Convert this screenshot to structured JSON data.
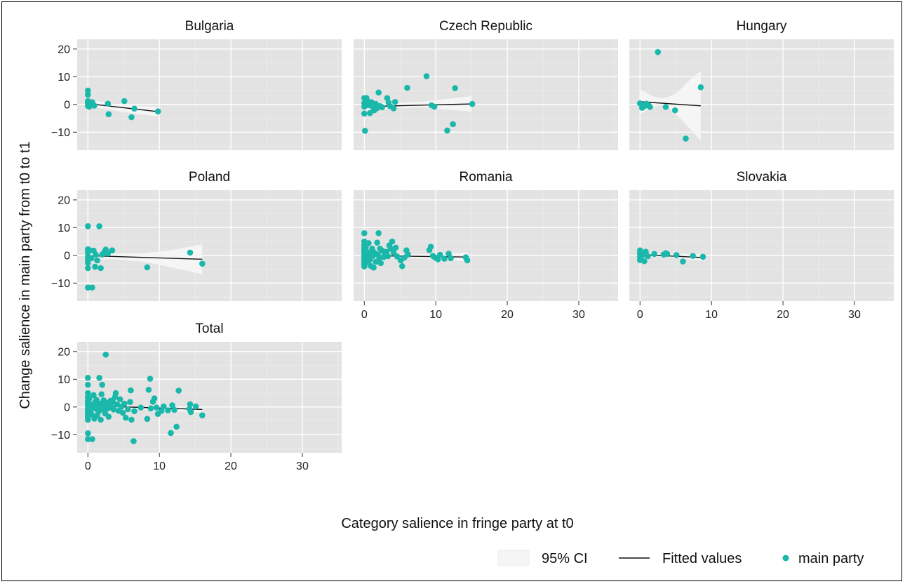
{
  "chart_data": {
    "type": "scatter",
    "xlabel": "Category salience in fringe party at t0",
    "ylabel": "Change salience in main party from t0 to t1",
    "xlim": [
      -1.5,
      35.5
    ],
    "ylim": [
      -16.5,
      23.5
    ],
    "x_ticks": [
      "0",
      "10",
      "20",
      "30"
    ],
    "y_ticks": [
      "20",
      "10",
      "0",
      "−10"
    ],
    "grid": true,
    "colors": {
      "points": "#1ab8aa",
      "line": "#111111",
      "ci": "#f5f5f5",
      "panel": "#e3e3e3"
    },
    "legend": {
      "placement": "bottom-right",
      "entries": [
        {
          "label": "95% CI",
          "kind": "ci"
        },
        {
          "label": "Fitted values",
          "kind": "line"
        },
        {
          "label": "main party",
          "kind": "point"
        }
      ]
    },
    "panels": [
      {
        "title": "Bulgaria",
        "fit": {
          "x": [
            0,
            9.8
          ],
          "y": [
            0.3,
            -2.6
          ]
        },
        "ci": {
          "x": [
            0,
            2,
            5,
            9.8
          ],
          "upper": [
            1.6,
            0.9,
            -0.2,
            -1.0
          ],
          "lower": [
            -1.0,
            -1.4,
            -2.7,
            -4.4
          ]
        },
        "points": [
          [
            0,
            5
          ],
          [
            0,
            3.5
          ],
          [
            0,
            1.2
          ],
          [
            0,
            0.5
          ],
          [
            0,
            -0.5
          ],
          [
            0.2,
            -0.8
          ],
          [
            0.4,
            0.2
          ],
          [
            0.6,
            0.8
          ],
          [
            0.9,
            -0.4
          ],
          [
            2.8,
            0.3
          ],
          [
            2.9,
            -3.5
          ],
          [
            5.1,
            1.2
          ],
          [
            6.1,
            -4.6
          ],
          [
            6.5,
            -1.5
          ],
          [
            9.8,
            -2.5
          ]
        ]
      },
      {
        "title": "Czech Republic",
        "fit": {
          "x": [
            0,
            15
          ],
          "y": [
            -0.8,
            0.2
          ]
        },
        "ci": {
          "x": [
            0,
            4,
            8,
            15
          ],
          "upper": [
            0.6,
            0.5,
            1.0,
            3.0
          ],
          "lower": [
            -2.1,
            -1.4,
            -1.0,
            -2.6
          ]
        },
        "points": [
          [
            0,
            2.3
          ],
          [
            0,
            0.5
          ],
          [
            0,
            -0.8
          ],
          [
            0,
            -3.3
          ],
          [
            0.1,
            -9.5
          ],
          [
            0.3,
            2.3
          ],
          [
            0.5,
            1.0
          ],
          [
            0.6,
            -0.3
          ],
          [
            0.8,
            -3.1
          ],
          [
            1.0,
            0.8
          ],
          [
            1.2,
            -1.0
          ],
          [
            1.4,
            -2.1
          ],
          [
            1.6,
            0.2
          ],
          [
            1.8,
            -1.3
          ],
          [
            2.0,
            4.3
          ],
          [
            2.2,
            -0.6
          ],
          [
            2.5,
            -1.0
          ],
          [
            3.2,
            2.3
          ],
          [
            3.4,
            0.6
          ],
          [
            3.6,
            -0.6
          ],
          [
            4.1,
            -1.4
          ],
          [
            4.3,
            0.9
          ],
          [
            6.0,
            6.0
          ],
          [
            8.7,
            10.2
          ],
          [
            9.4,
            -0.3
          ],
          [
            9.8,
            -0.8
          ],
          [
            11.6,
            -9.4
          ],
          [
            12.4,
            -7.1
          ],
          [
            12.7,
            5.9
          ],
          [
            15.1,
            0.2
          ]
        ]
      },
      {
        "title": "Hungary",
        "fit": {
          "x": [
            0,
            8.5
          ],
          "y": [
            1.0,
            -0.5
          ]
        },
        "ci": {
          "x": [
            0,
            1,
            2,
            3,
            4,
            5,
            6,
            7,
            8.5
          ],
          "upper": [
            5.5,
            4.0,
            2.8,
            2.3,
            2.7,
            4.0,
            6.3,
            9.0,
            12.0
          ],
          "lower": [
            -3.5,
            -2.0,
            -0.8,
            -0.3,
            -1.2,
            -3.5,
            -6.0,
            -8.8,
            -13.0
          ]
        },
        "points": [
          [
            0,
            0.4
          ],
          [
            0.3,
            -1.2
          ],
          [
            0.6,
            -0.6
          ],
          [
            0.9,
            0.3
          ],
          [
            1.2,
            -0.4
          ],
          [
            1.4,
            -0.9
          ],
          [
            2.5,
            18.9
          ],
          [
            3.6,
            -0.9
          ],
          [
            4.9,
            -2.1
          ],
          [
            6.4,
            -12.3
          ],
          [
            8.5,
            6.2
          ]
        ]
      },
      {
        "title": "Poland",
        "fit": {
          "x": [
            0,
            16
          ],
          "y": [
            -0.1,
            -1.4
          ]
        },
        "ci": {
          "x": [
            0,
            4,
            8,
            12,
            16
          ],
          "upper": [
            1.3,
            0.6,
            0.8,
            2.0,
            4.0
          ],
          "lower": [
            -1.5,
            -1.4,
            -2.4,
            -4.5,
            -6.8
          ]
        },
        "points": [
          [
            0,
            10.5
          ],
          [
            0,
            2.2
          ],
          [
            0,
            1.0
          ],
          [
            0,
            -0.5
          ],
          [
            0,
            -1.5
          ],
          [
            0,
            -2.7
          ],
          [
            0,
            -4.6
          ],
          [
            0,
            -11.6
          ],
          [
            0.3,
            1.8
          ],
          [
            0.5,
            -1.0
          ],
          [
            0.6,
            -11.6
          ],
          [
            0.8,
            1.7
          ],
          [
            1.0,
            -4.1
          ],
          [
            1.1,
            0.3
          ],
          [
            1.3,
            -1.8
          ],
          [
            1.6,
            10.5
          ],
          [
            1.8,
            -4.6
          ],
          [
            2.0,
            0.3
          ],
          [
            2.3,
            1.2
          ],
          [
            2.5,
            2.1
          ],
          [
            2.8,
            0.7
          ],
          [
            3.4,
            1.8
          ],
          [
            8.3,
            -4.3
          ],
          [
            14.3,
            1.0
          ],
          [
            16.0,
            -3.0
          ]
        ]
      },
      {
        "title": "Romania",
        "fit": {
          "x": [
            0,
            14.5
          ],
          "y": [
            -0.1,
            -0.6
          ]
        },
        "ci": {
          "x": [
            0,
            5,
            10,
            14.5
          ],
          "upper": [
            0.6,
            0.4,
            0.5,
            1.0
          ],
          "lower": [
            -0.8,
            -0.8,
            -1.3,
            -2.2
          ]
        },
        "points": [
          [
            0,
            8.0
          ],
          [
            0,
            5.0
          ],
          [
            0,
            3.8
          ],
          [
            0,
            2.8
          ],
          [
            0,
            2.0
          ],
          [
            0,
            1.2
          ],
          [
            0,
            0.5
          ],
          [
            0,
            -0.2
          ],
          [
            0,
            -0.9
          ],
          [
            0,
            -1.6
          ],
          [
            0,
            -2.3
          ],
          [
            0,
            -3.1
          ],
          [
            0,
            -4.0
          ],
          [
            0.2,
            3.0
          ],
          [
            0.3,
            1.5
          ],
          [
            0.4,
            -0.5
          ],
          [
            0.5,
            -2.5
          ],
          [
            0.6,
            4.4
          ],
          [
            0.7,
            0.8
          ],
          [
            0.8,
            -1.4
          ],
          [
            0.9,
            -3.8
          ],
          [
            1.1,
            2.4
          ],
          [
            1.2,
            -0.2
          ],
          [
            1.3,
            -4.4
          ],
          [
            1.4,
            1.0
          ],
          [
            1.6,
            -2.3
          ],
          [
            1.8,
            4.6
          ],
          [
            1.9,
            0.3
          ],
          [
            2.0,
            8.0
          ],
          [
            2.1,
            -0.9
          ],
          [
            2.2,
            2.4
          ],
          [
            2.3,
            -2.8
          ],
          [
            2.5,
            1.7
          ],
          [
            2.7,
            -0.6
          ],
          [
            2.9,
            0.4
          ],
          [
            3.1,
            1.3
          ],
          [
            3.3,
            -0.3
          ],
          [
            3.5,
            3.6
          ],
          [
            3.7,
            2.4
          ],
          [
            3.9,
            5.0
          ],
          [
            4.1,
            0.9
          ],
          [
            4.4,
            2.8
          ],
          [
            4.6,
            -0.4
          ],
          [
            5.1,
            -1.8
          ],
          [
            5.3,
            -3.9
          ],
          [
            5.6,
            -0.8
          ],
          [
            5.9,
            1.8
          ],
          [
            6.1,
            0.3
          ],
          [
            9.1,
            1.9
          ],
          [
            9.3,
            3.1
          ],
          [
            9.6,
            -0.2
          ],
          [
            9.9,
            -0.8
          ],
          [
            10.3,
            -1.4
          ],
          [
            10.6,
            0.2
          ],
          [
            11.2,
            -1.2
          ],
          [
            11.8,
            0.6
          ],
          [
            12.1,
            -1.0
          ],
          [
            14.2,
            -0.7
          ],
          [
            14.4,
            -1.8
          ]
        ]
      },
      {
        "title": "Slovakia",
        "fit": {
          "x": [
            0,
            8.8
          ],
          "y": [
            0.3,
            -0.8
          ]
        },
        "ci": {
          "x": [
            0,
            4,
            8.8
          ],
          "upper": [
            0.9,
            0.6,
            0.4
          ],
          "lower": [
            -0.4,
            -0.6,
            -2.0
          ]
        },
        "points": [
          [
            0,
            1.8
          ],
          [
            0,
            0.6
          ],
          [
            0,
            -0.5
          ],
          [
            0,
            -1.7
          ],
          [
            0.4,
            0.2
          ],
          [
            0.6,
            -2.1
          ],
          [
            0.8,
            1.3
          ],
          [
            1.1,
            -0.3
          ],
          [
            2.0,
            0.5
          ],
          [
            3.3,
            0.3
          ],
          [
            3.6,
            0.8
          ],
          [
            3.8,
            0.5
          ],
          [
            5.1,
            0.1
          ],
          [
            6.0,
            -2.2
          ],
          [
            7.4,
            -0.2
          ],
          [
            8.8,
            -0.5
          ]
        ]
      },
      {
        "title": "Total",
        "fit": {
          "x": [
            0,
            16
          ],
          "y": [
            0.5,
            -0.9
          ]
        },
        "ci": {
          "x": [
            0,
            8,
            16
          ],
          "upper": [
            1.2,
            0.1,
            0.2
          ],
          "lower": [
            -0.2,
            -0.9,
            -2.0
          ]
        },
        "points": [
          [
            0,
            10.5
          ],
          [
            0,
            8.0
          ],
          [
            0,
            5.0
          ],
          [
            0,
            3.5
          ],
          [
            0,
            2.3
          ],
          [
            0,
            1.5
          ],
          [
            0,
            0.5
          ],
          [
            0,
            -0.5
          ],
          [
            0,
            -1.2
          ],
          [
            0,
            -2.0
          ],
          [
            0,
            -2.8
          ],
          [
            0,
            -3.6
          ],
          [
            0,
            -4.6
          ],
          [
            0,
            -9.5
          ],
          [
            0,
            -11.6
          ],
          [
            0.2,
            3.0
          ],
          [
            0.3,
            1.0
          ],
          [
            0.4,
            -1.0
          ],
          [
            0.5,
            -2.6
          ],
          [
            0.6,
            -11.6
          ],
          [
            0.7,
            0.4
          ],
          [
            0.8,
            4.3
          ],
          [
            0.9,
            -4.2
          ],
          [
            1.0,
            1.7
          ],
          [
            1.1,
            -0.6
          ],
          [
            1.2,
            2.6
          ],
          [
            1.3,
            -3.0
          ],
          [
            1.4,
            0.2
          ],
          [
            1.5,
            -1.6
          ],
          [
            1.6,
            10.5
          ],
          [
            1.7,
            1.2
          ],
          [
            1.8,
            -4.6
          ],
          [
            1.9,
            4.6
          ],
          [
            2.0,
            8.0
          ],
          [
            2.1,
            -0.8
          ],
          [
            2.2,
            2.4
          ],
          [
            2.3,
            0.5
          ],
          [
            2.4,
            -2.3
          ],
          [
            2.5,
            18.9
          ],
          [
            2.6,
            1.6
          ],
          [
            2.8,
            -0.5
          ],
          [
            2.9,
            -3.5
          ],
          [
            3.0,
            0.6
          ],
          [
            3.2,
            2.3
          ],
          [
            3.4,
            -0.2
          ],
          [
            3.5,
            1.8
          ],
          [
            3.6,
            -0.9
          ],
          [
            3.8,
            3.6
          ],
          [
            3.9,
            5.0
          ],
          [
            4.1,
            0.9
          ],
          [
            4.3,
            -1.4
          ],
          [
            4.5,
            2.8
          ],
          [
            4.7,
            0.1
          ],
          [
            4.9,
            -2.1
          ],
          [
            5.1,
            1.2
          ],
          [
            5.3,
            -3.9
          ],
          [
            5.6,
            -0.8
          ],
          [
            5.9,
            1.8
          ],
          [
            6.0,
            6.0
          ],
          [
            6.1,
            -4.6
          ],
          [
            6.4,
            -12.3
          ],
          [
            6.5,
            -1.5
          ],
          [
            7.4,
            -0.2
          ],
          [
            8.3,
            -4.3
          ],
          [
            8.5,
            6.2
          ],
          [
            8.7,
            10.2
          ],
          [
            8.8,
            -0.5
          ],
          [
            9.1,
            1.9
          ],
          [
            9.3,
            3.1
          ],
          [
            9.6,
            -0.2
          ],
          [
            9.8,
            -2.5
          ],
          [
            10.3,
            -1.4
          ],
          [
            10.6,
            0.2
          ],
          [
            11.2,
            -1.2
          ],
          [
            11.6,
            -9.4
          ],
          [
            11.8,
            0.6
          ],
          [
            12.1,
            -1.0
          ],
          [
            12.4,
            -7.1
          ],
          [
            12.7,
            5.9
          ],
          [
            14.2,
            -0.7
          ],
          [
            14.3,
            1.0
          ],
          [
            14.4,
            -1.8
          ],
          [
            15.1,
            0.2
          ],
          [
            16.0,
            -3.0
          ]
        ]
      }
    ]
  }
}
